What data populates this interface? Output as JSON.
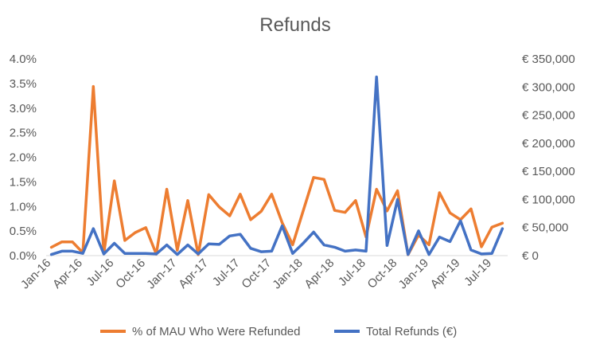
{
  "chart_data": {
    "type": "line",
    "title": "Refunds",
    "xlabel": "",
    "ylabel_left": "",
    "ylabel_right": "",
    "x_tick_labels": [
      "Jan-16",
      "Apr-16",
      "Jul-16",
      "Oct-16",
      "Jan-17",
      "Apr-17",
      "Jul-17",
      "Oct-17",
      "Jan-18",
      "Apr-18",
      "Jul-18",
      "Oct-18",
      "Jan-19",
      "Apr-19",
      "Jul-19"
    ],
    "x": [
      "Jan-16",
      "Feb-16",
      "Mar-16",
      "Apr-16",
      "May-16",
      "Jun-16",
      "Jul-16",
      "Aug-16",
      "Sep-16",
      "Oct-16",
      "Nov-16",
      "Dec-16",
      "Jan-17",
      "Feb-17",
      "Mar-17",
      "Apr-17",
      "May-17",
      "Jun-17",
      "Jul-17",
      "Aug-17",
      "Sep-17",
      "Oct-17",
      "Nov-17",
      "Dec-17",
      "Jan-18",
      "Feb-18",
      "Mar-18",
      "Apr-18",
      "May-18",
      "Jun-18",
      "Jul-18",
      "Aug-18",
      "Sep-18",
      "Oct-18",
      "Nov-18",
      "Dec-18",
      "Jan-19",
      "Feb-19",
      "Mar-19",
      "Apr-19",
      "May-19",
      "Jun-19",
      "Jul-19",
      "Aug-19"
    ],
    "left_axis": {
      "ylim": [
        0,
        4.0
      ],
      "tick_values": [
        0,
        0.5,
        1.0,
        1.5,
        2.0,
        2.5,
        3.0,
        3.5,
        4.0
      ],
      "tick_labels": [
        "0.0%",
        "0.5%",
        "1.0%",
        "1.5%",
        "2.0%",
        "2.5%",
        "3.0%",
        "3.5%",
        "4.0%"
      ]
    },
    "right_axis": {
      "ylim": [
        0,
        350000
      ],
      "tick_values": [
        0,
        50000,
        100000,
        150000,
        200000,
        250000,
        300000,
        350000
      ],
      "tick_labels": [
        "€ 0",
        "€ 50,000",
        "€ 100,000",
        "€ 150,000",
        "€ 200,000",
        "€ 250,000",
        "€ 300,000",
        "€ 350,000"
      ]
    },
    "series": [
      {
        "name": "% of MAU Who Were Refunded",
        "axis": "left",
        "color": "#ED7D31",
        "values": [
          0.17,
          0.28,
          0.28,
          0.06,
          3.44,
          0.05,
          1.52,
          0.31,
          0.47,
          0.57,
          0.03,
          1.35,
          0.11,
          1.12,
          0.02,
          1.24,
          0.99,
          0.81,
          1.25,
          0.73,
          0.9,
          1.25,
          0.67,
          0.22,
          0.91,
          1.59,
          1.55,
          0.92,
          0.88,
          1.12,
          0.38,
          1.35,
          0.91,
          1.32,
          0.02,
          0.42,
          0.22,
          1.28,
          0.87,
          0.73,
          0.95,
          0.18,
          0.58,
          0.66
        ]
      },
      {
        "name": "Total Refunds  (€)",
        "axis": "right",
        "color": "#4472C4",
        "values": [
          2000,
          8000,
          8000,
          4000,
          48000,
          3000,
          22000,
          4000,
          4000,
          4000,
          3000,
          19000,
          2000,
          19000,
          3000,
          21000,
          20000,
          35000,
          38000,
          13000,
          7000,
          8000,
          53000,
          4000,
          22000,
          42000,
          19000,
          15000,
          8000,
          10000,
          8000,
          318000,
          18000,
          100000,
          2000,
          44000,
          2000,
          33000,
          25000,
          62000,
          10000,
          3000,
          4000,
          48000
        ]
      }
    ],
    "legend": {
      "position": "bottom"
    },
    "grid": false
  }
}
